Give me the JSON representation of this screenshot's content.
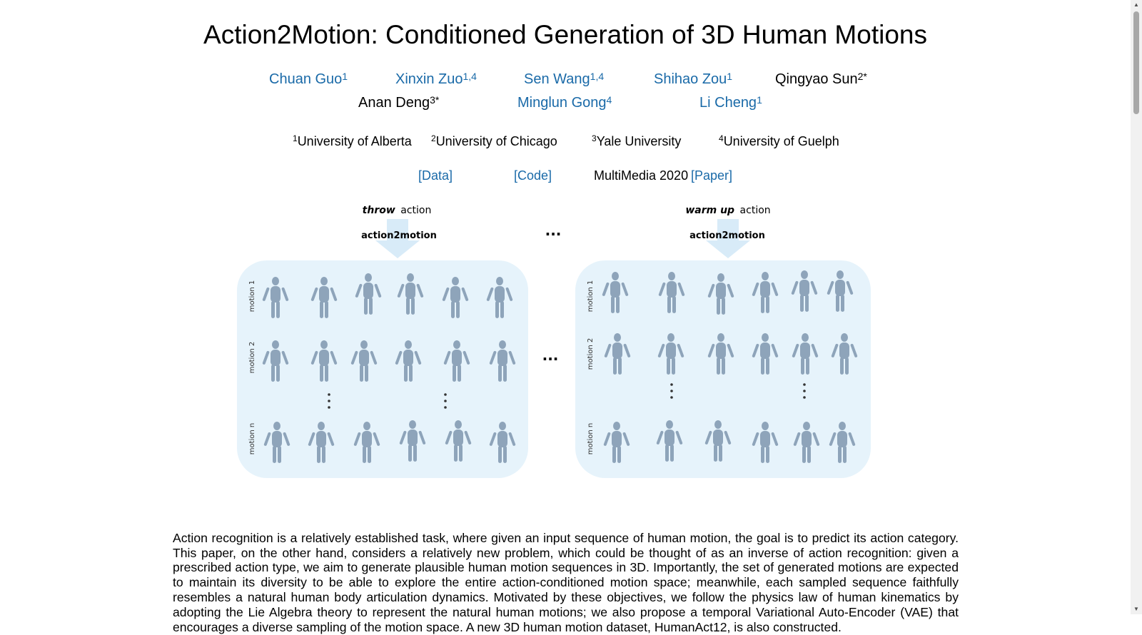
{
  "title": "Action2Motion: Conditioned Generation of 3D Human Motions",
  "authors": [
    {
      "name": "Chuan Guo",
      "sup": "1",
      "link": true
    },
    {
      "name": "Xinxin Zuo",
      "sup": "1,4",
      "link": true
    },
    {
      "name": "Sen Wang",
      "sup": "1,4",
      "link": true
    },
    {
      "name": "Shihao Zou",
      "sup": "1",
      "link": true
    },
    {
      "name": "Qingyao Sun",
      "sup": "2*",
      "link": false
    },
    {
      "name": "Anan Deng",
      "sup": "3*",
      "link": false
    },
    {
      "name": "Minglun Gong",
      "sup": "4",
      "link": true
    },
    {
      "name": "Li Cheng",
      "sup": "1",
      "link": true
    }
  ],
  "affiliations": [
    {
      "sup": "1",
      "name": "University of Alberta"
    },
    {
      "sup": "2",
      "name": "University of Chicago"
    },
    {
      "sup": "3",
      "name": "Yale University"
    },
    {
      "sup": "4",
      "name": "University of Guelph"
    }
  ],
  "links": {
    "data": "[Data]",
    "code": "[Code]",
    "venue": "MultiMedia 2020",
    "paper": "[Paper]"
  },
  "figure": {
    "left_action_verb": "throw",
    "right_action_verb": "warm up",
    "action_word": "action",
    "model_label": "action2motion",
    "ellipsis": "...",
    "row_labels": [
      "motion 1",
      "motion 2",
      "motion n"
    ],
    "colors": {
      "panel": "#e6f3fb",
      "arrow": "#d8ebf8",
      "figure": "#8ea4ba",
      "link": "#1a6aa8"
    }
  },
  "abstract": "Action recognition is a relatively established task, where given an input sequence of human motion, the goal is to predict its action category. This paper, on the other hand, considers a relatively new problem, which could be thought of as an inverse of action recognition: given a prescribed action type, we aim to generate plausible human motion sequences in 3D. Importantly, the set of generated motions are expected to maintain its diversity to be able to explore the entire action-conditioned motion space; meanwhile, each sampled sequence faithfully resembles a natural human body articulation dynamics. Motivated by these objectives, we follow the physics law of human kinematics by adopting the Lie Algebra theory to represent the natural human motions; we also propose a temporal Variational Auto-Encoder (VAE) that encourages a diverse sampling of the motion space. A new 3D human motion dataset, HumanAct12, is also constructed."
}
